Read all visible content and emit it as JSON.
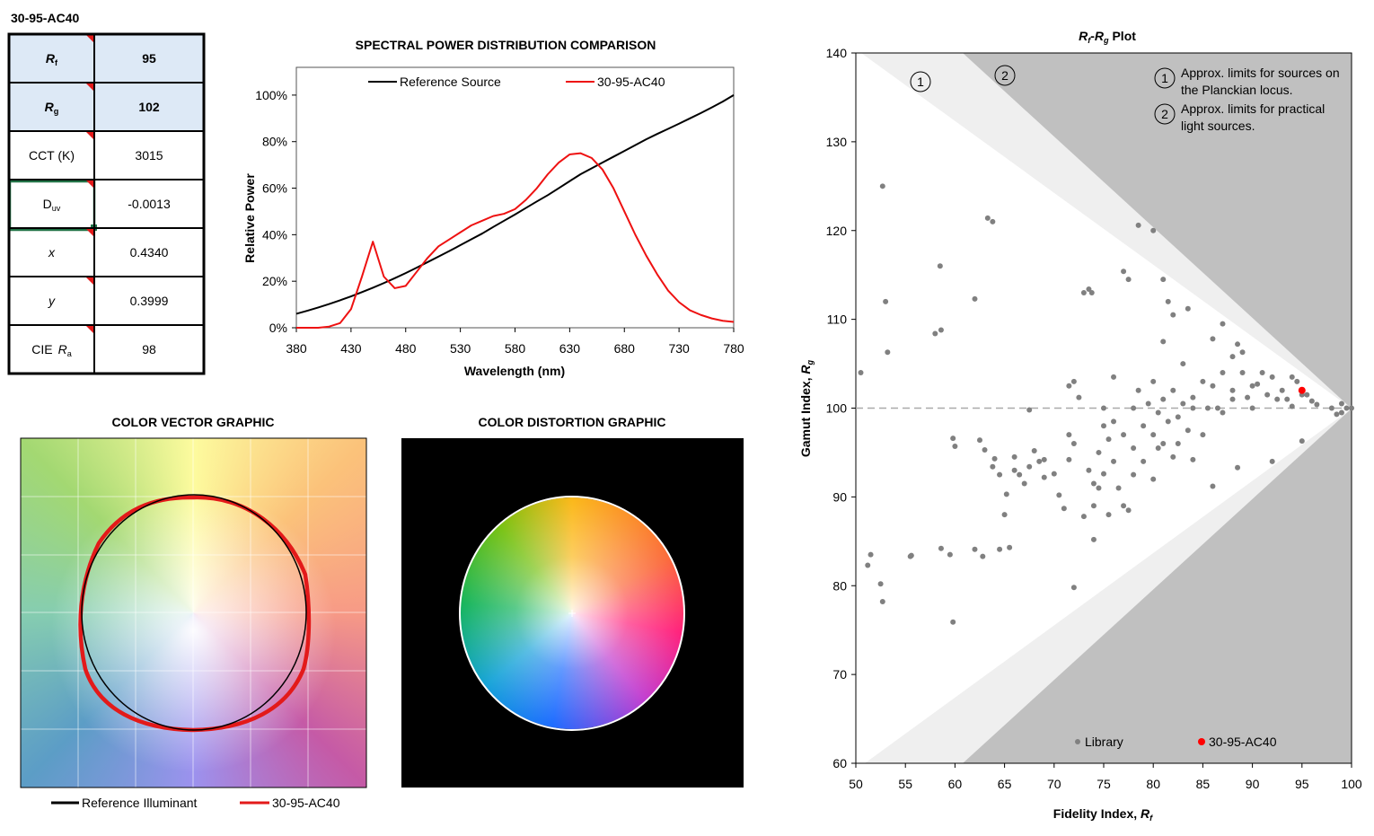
{
  "table": {
    "title": "30-95-AC40",
    "rows": [
      {
        "italic": "R",
        "sub": "f",
        "value": "95",
        "highlight": true
      },
      {
        "italic": "R",
        "sub": "g",
        "value": "102",
        "highlight": true
      },
      {
        "label": "CCT (K)",
        "value": "3015"
      },
      {
        "label": "D",
        "sub": "uv",
        "value": "-0.0013"
      },
      {
        "italic": "x",
        "value": "0.4340"
      },
      {
        "italic": "y",
        "value": "0.3999"
      },
      {
        "label": "CIE",
        "italic": "R",
        "sub": "a",
        "value": "98"
      }
    ]
  },
  "graphics": {
    "vector": {
      "title": "COLOR VECTOR GRAPHIC",
      "legend": [
        "Reference Illuminant",
        "30-95-AC40"
      ]
    },
    "distortion": {
      "title": "COLOR DISTORTION GRAPHIC"
    }
  },
  "chart_data": [
    {
      "type": "line",
      "title": "SPECTRAL POWER DISTRIBUTION COMPARISON",
      "xlabel": "Wavelength (nm)",
      "ylabel": "Relative Power",
      "legend": "top",
      "x": [
        380,
        390,
        400,
        410,
        420,
        430,
        440,
        450,
        460,
        470,
        480,
        490,
        500,
        510,
        520,
        530,
        540,
        550,
        560,
        570,
        580,
        590,
        600,
        610,
        620,
        630,
        640,
        650,
        660,
        670,
        680,
        690,
        700,
        710,
        720,
        730,
        740,
        750,
        760,
        770,
        780
      ],
      "xlim": [
        380,
        780
      ],
      "xticks": [
        380,
        430,
        480,
        530,
        580,
        630,
        680,
        730,
        780
      ],
      "ylim": [
        0,
        110
      ],
      "yticks": [
        {
          "value": 0,
          "label": "0%"
        },
        {
          "value": 20,
          "label": "20%"
        },
        {
          "value": 40,
          "label": "40%"
        },
        {
          "value": 60,
          "label": "60%"
        },
        {
          "value": 80,
          "label": "80%"
        },
        {
          "value": 100,
          "label": "100%"
        }
      ],
      "series": [
        {
          "name": "Reference Source",
          "color": "#000000",
          "values": [
            6,
            7.3,
            8.7,
            10.2,
            11.8,
            13.5,
            15.3,
            17.2,
            19.2,
            21.3,
            23.5,
            25.8,
            28.2,
            30.6,
            33,
            35.5,
            38,
            40.5,
            43.3,
            46,
            48.7,
            51.5,
            54.3,
            57,
            60,
            63,
            66,
            68.5,
            71,
            73.5,
            76,
            78.5,
            81,
            83.3,
            85.5,
            87.7,
            90,
            92.3,
            94.7,
            97.2,
            100
          ]
        },
        {
          "name": "30-95-AC40",
          "color": "#ee1111",
          "values": [
            0,
            0,
            0,
            0.5,
            2,
            8,
            22,
            37,
            22,
            17,
            18,
            24,
            30,
            35,
            38,
            41,
            44,
            46,
            48,
            49,
            51,
            55,
            60,
            66,
            71,
            74.5,
            75,
            73,
            68,
            60,
            50,
            40,
            31,
            23,
            16,
            11,
            7.5,
            5.5,
            4,
            3,
            2.5
          ]
        }
      ]
    },
    {
      "type": "scatter",
      "title": [
        "R",
        "f",
        "-",
        "R",
        "g",
        " Plot"
      ],
      "xlabel": [
        "Fidelity Index, ",
        "R",
        "f"
      ],
      "ylabel": [
        "Gamut Index, ",
        "R",
        "g"
      ],
      "xlim": [
        50,
        100
      ],
      "xticks": [
        50,
        55,
        60,
        65,
        70,
        75,
        80,
        85,
        90,
        95,
        100
      ],
      "ylim": [
        60,
        140
      ],
      "yticks": [
        60,
        70,
        80,
        90,
        100,
        110,
        120,
        130,
        140
      ],
      "reference_y": 100,
      "legend": "bottom",
      "annotations": [
        {
          "number": "1",
          "lines": [
            "Approx. limits for sources on",
            "the Planckian locus."
          ]
        },
        {
          "number": "2",
          "lines": [
            "Approx. limits for practical",
            "light sources."
          ]
        }
      ],
      "series": [
        {
          "name": "Library",
          "color": "#808080",
          "x": [
            50.5,
            51.2,
            51.5,
            52.5,
            52.7,
            52.7,
            53,
            53.2,
            55.5,
            55.6,
            58,
            58.5,
            58.6,
            58.6,
            59.5,
            59.8,
            59.8,
            60,
            62,
            62,
            62.5,
            62.8,
            63,
            63.3,
            63.8,
            63.8,
            64,
            64.5,
            64.5,
            65,
            65.2,
            65.5,
            66,
            66,
            66.5,
            67,
            67.5,
            67.5,
            68,
            68.5,
            69,
            69,
            70,
            70.5,
            71,
            71.5,
            71.5,
            71.5,
            72,
            72,
            72,
            72.5,
            73,
            73,
            73.5,
            73.8,
            73.5,
            74,
            74,
            74,
            74.5,
            74.5,
            75,
            75,
            75,
            75.5,
            75.5,
            76,
            76,
            76,
            76.5,
            77,
            77,
            77,
            77.5,
            77.5,
            78,
            78,
            78,
            78.5,
            78.5,
            79,
            79,
            79.5,
            80,
            80,
            80,
            80,
            80.5,
            80.5,
            81,
            81,
            81,
            81,
            81.5,
            81.5,
            82,
            82,
            82,
            82.5,
            82.5,
            83,
            83,
            83.5,
            83.5,
            84,
            84,
            84,
            85,
            85,
            85.5,
            86,
            86,
            86,
            86.5,
            87,
            87,
            87,
            88,
            88,
            88,
            88.5,
            88.5,
            89,
            89,
            89.5,
            90,
            90,
            90.5,
            91,
            91.5,
            92,
            92,
            92.5,
            93,
            93.5,
            94,
            94,
            94.5,
            95,
            95,
            95.5,
            96,
            96.5,
            98,
            98.5,
            99,
            99,
            99.5,
            100
          ],
          "values": [
            104,
            82.3,
            83.5,
            80.2,
            78.2,
            125,
            112,
            106.3,
            83.3,
            83.4,
            108.4,
            116,
            108.8,
            84.2,
            83.5,
            75.9,
            96.6,
            95.7,
            84.1,
            112.3,
            96.4,
            83.3,
            95.3,
            121.4,
            121,
            93.4,
            94.3,
            92.5,
            84.1,
            88,
            90.3,
            84.3,
            93,
            94.5,
            92.5,
            91.5,
            99.8,
            93.4,
            95.2,
            94,
            94.2,
            92.2,
            92.6,
            90.2,
            88.7,
            94.2,
            97,
            102.5,
            103,
            96,
            79.8,
            101.2,
            87.8,
            113,
            113.4,
            113,
            93,
            91.5,
            89,
            85.2,
            91,
            95,
            98,
            100,
            92.6,
            96.5,
            88,
            103.5,
            98.5,
            94,
            91,
            115.4,
            97,
            89,
            114.5,
            88.5,
            100,
            95.5,
            92.5,
            120.6,
            102,
            98,
            94,
            100.5,
            120,
            103,
            97,
            92,
            99.5,
            95.5,
            114.5,
            107.5,
            101,
            96,
            112,
            98.5,
            110.5,
            102,
            94.5,
            99,
            96,
            105,
            100.5,
            111.2,
            97.5,
            100,
            94.2,
            101.2,
            103,
            97,
            100,
            107.8,
            102.5,
            91.2,
            100,
            109.5,
            104,
            99.5,
            105.8,
            102,
            101,
            107.2,
            93.3,
            106.3,
            104,
            101.2,
            102.5,
            100,
            102.7,
            104,
            101.5,
            103.5,
            94,
            101,
            102,
            101,
            103.5,
            100.2,
            103,
            96.3,
            101.5,
            101.5,
            100.8,
            100.4,
            100,
            99.3,
            99.5,
            100.5,
            100,
            100
          ]
        },
        {
          "name": "30-95-AC40",
          "color": "#ff0000",
          "x": [
            95
          ],
          "values": [
            102
          ]
        }
      ]
    }
  ]
}
